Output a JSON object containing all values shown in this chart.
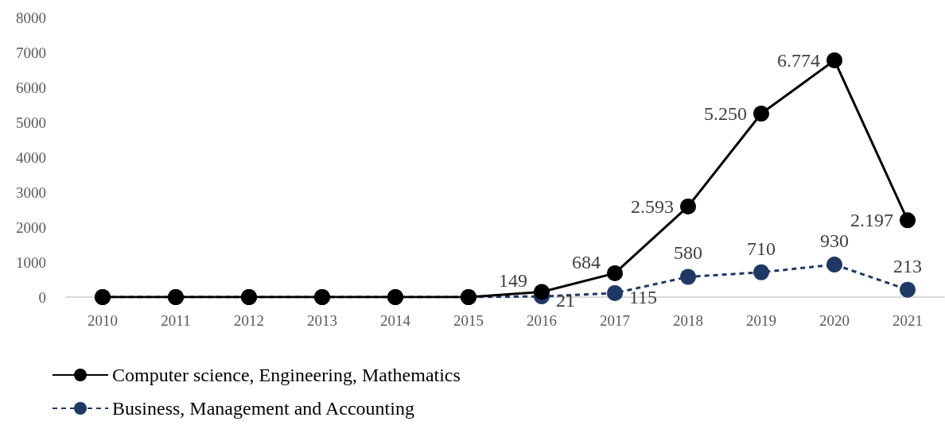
{
  "chart_data": {
    "type": "line",
    "categories": [
      "2010",
      "2011",
      "2012",
      "2013",
      "2014",
      "2015",
      "2016",
      "2017",
      "2018",
      "2019",
      "2020",
      "2021"
    ],
    "series": [
      {
        "name": "Computer science, Engineering, Mathematics",
        "color": "#000000",
        "line_style": "solid",
        "values": [
          0,
          0,
          0,
          0,
          0,
          0,
          149,
          684,
          2593,
          5250,
          6774,
          2197
        ],
        "value_labels": [
          null,
          null,
          null,
          null,
          null,
          null,
          "149",
          "684",
          "2.593",
          "5.250",
          "6.774",
          "2.197"
        ]
      },
      {
        "name": "Business, Management and Accounting",
        "color": "#1f3864",
        "line_style": "dashed",
        "values": [
          0,
          0,
          0,
          0,
          0,
          0,
          21,
          115,
          580,
          710,
          930,
          213
        ],
        "value_labels": [
          null,
          null,
          null,
          null,
          null,
          null,
          "21",
          "115",
          "580",
          "710",
          "930",
          "213"
        ]
      }
    ],
    "ylim": [
      0,
      8000
    ],
    "yticks": [
      0,
      1000,
      2000,
      3000,
      4000,
      5000,
      6000,
      7000,
      8000
    ],
    "grid": false,
    "legend": "bottom left",
    "marker": "circle"
  }
}
